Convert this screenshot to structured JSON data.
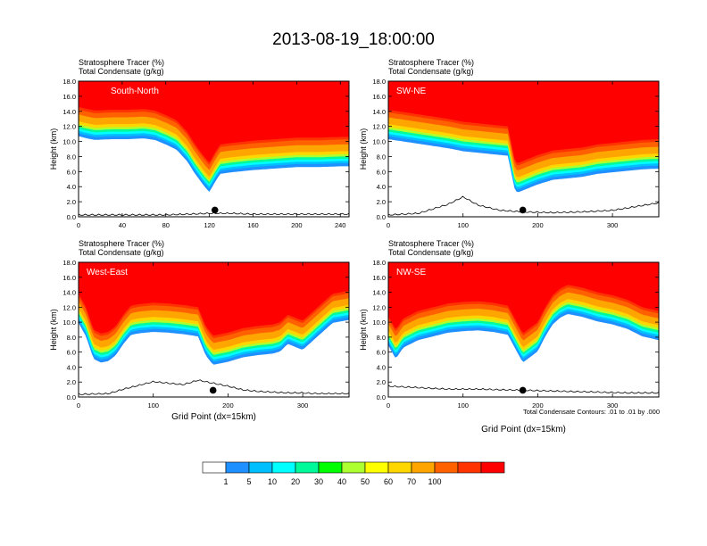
{
  "figure": {
    "title": "2013-08-19_18:00:00",
    "contour_note": "Total Condensate Contours: .01 to .01 by .000"
  },
  "colorbar": {
    "colors": [
      "#ffffff",
      "#1e90ff",
      "#00bfff",
      "#00ffff",
      "#00fa9a",
      "#00ff00",
      "#adff2f",
      "#ffff00",
      "#ffd700",
      "#ffa500",
      "#ff6100",
      "#ff3300",
      "#ff0000"
    ],
    "labels": [
      "1",
      "5",
      "10",
      "20",
      "30",
      "40",
      "50",
      "60",
      "70",
      "100"
    ]
  },
  "chart_data": [
    {
      "type": "heatmap",
      "panel_label": "South-North",
      "header_line1": "Stratosphere Tracer   (%)",
      "header_line2": "Total Condensate   (g/kg)",
      "ylabel": "Height (km)",
      "xlabel": "",
      "xlim": [
        0,
        248
      ],
      "ylim": [
        0,
        18
      ],
      "x_ticks": [
        "0",
        "40",
        "80",
        "120",
        "160",
        "200",
        "240"
      ],
      "x_tick_values": [
        0,
        40,
        80,
        120,
        160,
        200,
        240
      ],
      "y_ticks": [
        "0.0",
        "2.0",
        "4.0",
        "6.0",
        "8.0",
        "10.0",
        "12.0",
        "14.0",
        "16.0",
        "18.0"
      ],
      "tracer_front_km": {
        "x": [
          0,
          5,
          15,
          30,
          45,
          60,
          70,
          80,
          90,
          95,
          100,
          105,
          110,
          115,
          120,
          125,
          130,
          140,
          160,
          180,
          200,
          220,
          240,
          248
        ],
        "y": [
          14.6,
          14.4,
          14.1,
          14.2,
          14.2,
          14.3,
          14.1,
          13.5,
          12.8,
          12.0,
          11.2,
          10.0,
          9.0,
          8.0,
          7.2,
          8.5,
          9.6,
          9.8,
          10.1,
          10.3,
          10.5,
          10.5,
          10.6,
          10.6
        ]
      },
      "marker_x": 125,
      "terrain_km": {
        "x": [
          0,
          40,
          80,
          100,
          120,
          140,
          160,
          200,
          248
        ],
        "y": [
          0.2,
          0.2,
          0.2,
          0.3,
          0.4,
          0.4,
          0.3,
          0.3,
          0.3
        ]
      }
    },
    {
      "type": "heatmap",
      "panel_label": "SW-NE",
      "header_line1": "Stratosphere Tracer   (%)",
      "header_line2": "Total Condensate   (g/kg)",
      "ylabel": "Height (km)",
      "xlabel": "",
      "xlim": [
        0,
        362
      ],
      "ylim": [
        0,
        18
      ],
      "x_ticks": [
        "0",
        "100",
        "200",
        "300"
      ],
      "x_tick_values": [
        0,
        100,
        200,
        300
      ],
      "y_ticks": [
        "0.0",
        "2.0",
        "4.0",
        "6.0",
        "8.0",
        "10.0",
        "12.0",
        "14.0",
        "16.0",
        "18.0"
      ],
      "tracer_front_km": {
        "x": [
          0,
          20,
          40,
          60,
          80,
          100,
          120,
          140,
          160,
          165,
          170,
          175,
          180,
          200,
          220,
          240,
          260,
          280,
          300,
          320,
          340,
          362
        ],
        "y": [
          14.2,
          13.9,
          13.6,
          13.3,
          13.0,
          12.6,
          12.4,
          12.2,
          12.0,
          9.5,
          7.2,
          7.2,
          7.4,
          8.2,
          8.8,
          9.0,
          9.2,
          9.6,
          9.8,
          10.0,
          10.2,
          10.3
        ]
      },
      "marker_x": 180,
      "terrain_km": {
        "x": [
          0,
          40,
          60,
          80,
          100,
          120,
          150,
          180,
          220,
          260,
          300,
          362
        ],
        "y": [
          0.2,
          0.4,
          1.0,
          1.6,
          2.6,
          1.5,
          0.8,
          0.6,
          0.5,
          0.6,
          0.8,
          1.8
        ]
      }
    },
    {
      "type": "heatmap",
      "panel_label": "West-East",
      "header_line1": "Stratosphere Tracer   (%)",
      "header_line2": "Total Condensate   (g/kg)",
      "ylabel": "Height (km)",
      "xlabel": "Grid Point (dx=15km)",
      "xlim": [
        0,
        362
      ],
      "ylim": [
        0,
        18
      ],
      "x_ticks": [
        "0",
        "100",
        "200",
        "300"
      ],
      "x_tick_values": [
        0,
        100,
        200,
        300
      ],
      "y_ticks": [
        "0.0",
        "2.0",
        "4.0",
        "6.0",
        "8.0",
        "10.0",
        "12.0",
        "14.0",
        "16.0",
        "18.0"
      ],
      "tracer_front_km": {
        "x": [
          0,
          10,
          20,
          30,
          40,
          50,
          60,
          70,
          80,
          100,
          120,
          140,
          160,
          170,
          180,
          200,
          220,
          240,
          260,
          270,
          280,
          300,
          320,
          340,
          362
        ],
        "y": [
          13.8,
          12.0,
          9.0,
          8.5,
          8.7,
          9.5,
          11.0,
          12.2,
          12.4,
          12.6,
          12.5,
          12.3,
          12.0,
          9.5,
          8.2,
          8.6,
          9.2,
          9.5,
          9.7,
          10.0,
          11.0,
          10.2,
          12.0,
          13.8,
          14.2
        ]
      },
      "marker_x": 180,
      "terrain_km": {
        "x": [
          0,
          40,
          60,
          80,
          100,
          120,
          140,
          160,
          180,
          200,
          220,
          240,
          260,
          280,
          300,
          320,
          340,
          362
        ],
        "y": [
          0.3,
          0.4,
          1.0,
          1.5,
          2.0,
          1.8,
          1.6,
          2.2,
          1.8,
          1.4,
          0.9,
          0.7,
          0.6,
          0.5,
          0.5,
          0.4,
          0.4,
          0.4
        ]
      }
    },
    {
      "type": "heatmap",
      "panel_label": "NW-SE",
      "header_line1": "Stratosphere Tracer   (%)",
      "header_line2": "Total Condensate   (g/kg)",
      "ylabel": "Height (km)",
      "xlabel": "Grid Point (dx=15km)",
      "xlim": [
        0,
        362
      ],
      "ylim": [
        0,
        18
      ],
      "x_ticks": [
        "0",
        "100",
        "200",
        "300"
      ],
      "x_tick_values": [
        0,
        100,
        200,
        300
      ],
      "y_ticks": [
        "0.0",
        "2.0",
        "4.0",
        "6.0",
        "8.0",
        "10.0",
        "12.0",
        "14.0",
        "16.0",
        "18.0"
      ],
      "tracer_front_km": {
        "x": [
          0,
          10,
          20,
          40,
          60,
          80,
          100,
          120,
          140,
          160,
          180,
          200,
          210,
          220,
          230,
          240,
          260,
          280,
          300,
          320,
          340,
          362
        ],
        "y": [
          10.8,
          9.0,
          10.5,
          11.5,
          12.0,
          12.5,
          12.7,
          12.8,
          12.6,
          12.2,
          8.5,
          10.0,
          12.0,
          13.6,
          14.5,
          15.0,
          14.6,
          14.0,
          13.6,
          13.0,
          12.0,
          11.5
        ]
      },
      "marker_x": 180,
      "terrain_km": {
        "x": [
          0,
          40,
          80,
          120,
          160,
          200,
          240,
          280,
          320,
          362
        ],
        "y": [
          1.4,
          1.2,
          1.0,
          1.0,
          0.9,
          0.8,
          0.7,
          0.6,
          0.5,
          0.5
        ]
      }
    }
  ]
}
